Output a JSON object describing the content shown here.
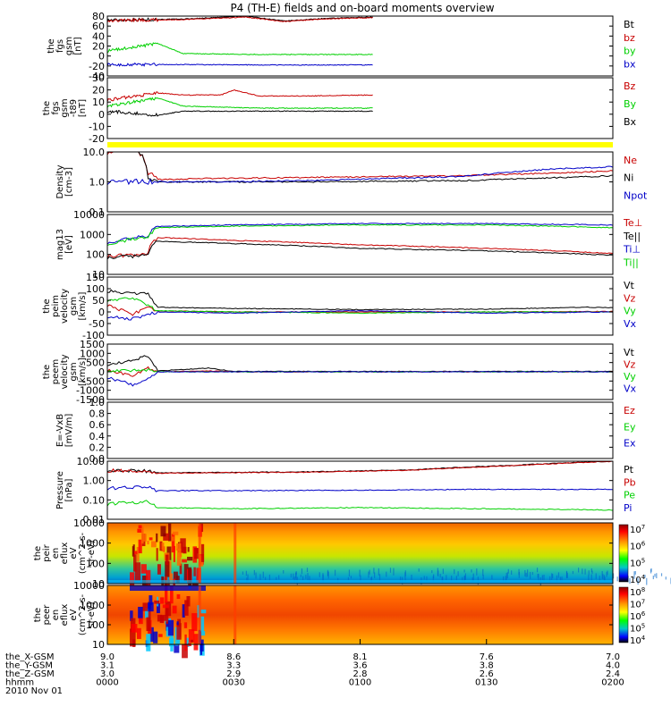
{
  "title": "P4 (TH-E) fields and on-board moments overview",
  "colors": {
    "black": "#000000",
    "red": "#c80000",
    "green": "#00d000",
    "blue": "#0000c8",
    "yellow": "#ffff00",
    "darkred": "#8b0000"
  },
  "time_axis": {
    "rows": [
      {
        "label": "the_X-GSM",
        "values": [
          "9.0",
          "8.6",
          "8.1",
          "7.6",
          "7.0"
        ]
      },
      {
        "label": "the_Y-GSM",
        "values": [
          "3.1",
          "3.3",
          "3.6",
          "3.8",
          "4.0"
        ]
      },
      {
        "label": "the_Z-GSM",
        "values": [
          "3.0",
          "2.9",
          "2.8",
          "2.6",
          "2.4"
        ]
      },
      {
        "label": "hhmm",
        "values": [
          "0000",
          "0030",
          "0100",
          "0130",
          "0200"
        ]
      }
    ],
    "date": "2010 Nov 01",
    "range": [
      "00:00",
      "02:00"
    ]
  },
  "chart_data": [
    {
      "type": "line",
      "ylabel": [
        "the",
        "fgs",
        "gsm",
        "[nT]"
      ],
      "ylim": [
        -40,
        80
      ],
      "yticks": [
        "80",
        "60",
        "40",
        "20",
        "0",
        "-20",
        "-40"
      ],
      "scale": "linear",
      "data_extent": [
        0,
        1.05
      ],
      "series": [
        {
          "name": "Bt",
          "color": "black",
          "x": [
            0,
            0.3,
            0.55,
            0.7,
            0.85,
            1.05
          ],
          "y": [
            72,
            74,
            80,
            70,
            75,
            78
          ]
        },
        {
          "name": "bz",
          "color": "red",
          "x": [
            0,
            0.3,
            0.55,
            0.7,
            0.85,
            1.05
          ],
          "y": [
            71,
            73,
            78,
            69,
            74,
            77
          ]
        },
        {
          "name": "by",
          "color": "green",
          "x": [
            0,
            0.2,
            0.3,
            0.6,
            1.05
          ],
          "y": [
            10,
            25,
            5,
            3,
            3
          ]
        },
        {
          "name": "bx",
          "color": "blue",
          "x": [
            0,
            0.3,
            0.6,
            1.05
          ],
          "y": [
            -17,
            -17,
            -18,
            -18
          ]
        }
      ]
    },
    {
      "type": "line",
      "ylabel": [
        "the",
        "fgs",
        "gsm",
        "-t89",
        "[nT]"
      ],
      "ylim": [
        -30,
        30
      ],
      "yticks": [
        "30",
        "20",
        "10",
        "0",
        "-10",
        "-20"
      ],
      "scale": "linear",
      "data_extent": [
        0,
        1.05
      ],
      "series": [
        {
          "name": "Bz",
          "color": "red",
          "x": [
            0,
            0.2,
            0.3,
            0.45,
            0.5,
            0.6,
            0.8,
            1.05
          ],
          "y": [
            8,
            15,
            13,
            13,
            18,
            12,
            12,
            13
          ]
        },
        {
          "name": "By",
          "color": "green",
          "x": [
            0,
            0.2,
            0.3,
            0.6,
            1.05
          ],
          "y": [
            2,
            10,
            2,
            0,
            0
          ]
        },
        {
          "name": "Bx",
          "color": "black",
          "x": [
            0,
            0.2,
            0.3,
            0.6,
            1.05
          ],
          "y": [
            -3,
            -7,
            -3,
            -3,
            -3
          ]
        }
      ]
    },
    {
      "type": "line",
      "ylabel": [
        "Density",
        "[cm-3]"
      ],
      "ylim": [
        0.1,
        10
      ],
      "yticks": [
        "10.0",
        "1.0",
        "0.1"
      ],
      "scale": "log",
      "data_extent": [
        0,
        2
      ],
      "series": [
        {
          "name": "Ne",
          "color": "red",
          "x": [
            0,
            0.1,
            0.16,
            0.2,
            0.4,
            0.8,
            1.4,
            1.8,
            2.0
          ],
          "y": [
            10,
            15,
            2,
            1.2,
            1.3,
            1.4,
            1.6,
            2.0,
            2.3
          ]
        },
        {
          "name": "Ni",
          "color": "black",
          "x": [
            0,
            0.1,
            0.16,
            0.2,
            0.4,
            0.8,
            1.4,
            1.8,
            2.0
          ],
          "y": [
            12,
            16,
            1.5,
            1.0,
            1.0,
            1.0,
            1.1,
            1.4,
            1.6
          ]
        },
        {
          "name": "Npot",
          "color": "blue",
          "x": [
            0,
            0.16,
            0.2,
            0.4,
            0.8,
            1.4,
            1.8,
            2.0
          ],
          "y": [
            1.0,
            1.0,
            1.0,
            1.0,
            1.1,
            1.5,
            2.8,
            3.2
          ]
        }
      ]
    },
    {
      "type": "line",
      "ylabel": [
        "mag13",
        "[eV]"
      ],
      "ylim": [
        10,
        10000
      ],
      "yticks": [
        "10000",
        "1000",
        "100",
        "10"
      ],
      "scale": "log",
      "data_extent": [
        0,
        2
      ],
      "series": [
        {
          "name": "Te⊥",
          "color": "red",
          "x": [
            0,
            0.16,
            0.2,
            0.5,
            1.0,
            1.5,
            2.0
          ],
          "y": [
            80,
            100,
            700,
            500,
            300,
            200,
            110
          ]
        },
        {
          "name": "Te||",
          "color": "black",
          "x": [
            0,
            0.16,
            0.2,
            0.5,
            1.0,
            1.5,
            2.0
          ],
          "y": [
            70,
            90,
            450,
            350,
            200,
            150,
            90
          ]
        },
        {
          "name": "Ti⊥",
          "color": "blue",
          "x": [
            0,
            0.16,
            0.2,
            0.5,
            1.0,
            1.5,
            2.0
          ],
          "y": [
            400,
            800,
            2500,
            3000,
            3500,
            3500,
            3000
          ]
        },
        {
          "name": "Ti||",
          "color": "green",
          "x": [
            0,
            0.16,
            0.2,
            0.5,
            1.0,
            1.5,
            2.0
          ],
          "y": [
            350,
            700,
            2200,
            2600,
            3000,
            3000,
            2200
          ]
        }
      ]
    },
    {
      "type": "line",
      "ylabel": [
        "the",
        "peim",
        "velocity",
        "gsm",
        "[km/s]"
      ],
      "ylim": [
        -100,
        150
      ],
      "yticks": [
        "150",
        "100",
        "50",
        "0",
        "-50",
        "-100"
      ],
      "scale": "linear",
      "data_extent": [
        0,
        2
      ],
      "series": [
        {
          "name": "Vt",
          "color": "black",
          "x": [
            0,
            0.1,
            0.16,
            0.2,
            0.5,
            1.0,
            1.5,
            1.9,
            2.0
          ],
          "y": [
            90,
            80,
            80,
            20,
            15,
            10,
            12,
            20,
            18
          ]
        },
        {
          "name": "Vz",
          "color": "red",
          "x": [
            0,
            0.1,
            0.16,
            0.2,
            0.5,
            1.0,
            1.5,
            2.0
          ],
          "y": [
            30,
            -10,
            20,
            5,
            0,
            0,
            0,
            2
          ]
        },
        {
          "name": "Vy",
          "color": "green",
          "x": [
            0,
            0.1,
            0.16,
            0.2,
            0.5,
            1.0,
            1.5,
            2.0
          ],
          "y": [
            50,
            60,
            30,
            5,
            0,
            -5,
            0,
            0
          ]
        },
        {
          "name": "Vx",
          "color": "blue",
          "x": [
            0,
            0.1,
            0.16,
            0.2,
            0.5,
            1.0,
            1.5,
            2.0
          ],
          "y": [
            -20,
            -30,
            -10,
            0,
            -5,
            5,
            -5,
            0
          ]
        }
      ]
    },
    {
      "type": "line",
      "ylabel": [
        "the",
        "peem",
        "velocity",
        "gsm",
        "[km/s]"
      ],
      "ylim": [
        -1500,
        1500
      ],
      "yticks": [
        "1500",
        "1000",
        "500",
        "0",
        "-500",
        "-1000",
        "-1500"
      ],
      "scale": "linear",
      "data_extent": [
        0,
        2
      ],
      "series": [
        {
          "name": "Vt",
          "color": "black",
          "x": [
            0,
            0.1,
            0.16,
            0.2,
            0.4,
            0.5,
            1.0,
            2.0
          ],
          "y": [
            400,
            600,
            900,
            50,
            200,
            20,
            20,
            20
          ]
        },
        {
          "name": "Vz",
          "color": "red",
          "x": [
            0,
            0.1,
            0.16,
            0.2,
            0.4,
            0.5,
            1.0,
            2.0
          ],
          "y": [
            100,
            -200,
            200,
            0,
            50,
            0,
            0,
            0
          ]
        },
        {
          "name": "Vy",
          "color": "green",
          "x": [
            0,
            0.16,
            0.2,
            1.0,
            2.0
          ],
          "y": [
            50,
            100,
            0,
            0,
            0
          ]
        },
        {
          "name": "Vx",
          "color": "blue",
          "x": [
            0,
            0.1,
            0.16,
            0.2,
            0.5,
            1.0,
            2.0
          ],
          "y": [
            -300,
            -700,
            -400,
            0,
            0,
            0,
            0
          ]
        }
      ]
    },
    {
      "type": "line",
      "ylabel": [
        "E=-VxB",
        "[mV/m]"
      ],
      "ylim": [
        0,
        1
      ],
      "yticks": [
        "1.0",
        "0.8",
        "0.6",
        "0.4",
        "0.2",
        "0.0"
      ],
      "scale": "linear",
      "data_extent": [
        0,
        2
      ],
      "series": [
        {
          "name": "Ez",
          "color": "red",
          "x": [],
          "y": []
        },
        {
          "name": "Ey",
          "color": "green",
          "x": [],
          "y": []
        },
        {
          "name": "Ex",
          "color": "blue",
          "x": [],
          "y": []
        }
      ]
    },
    {
      "type": "line",
      "ylabel": [
        "Pressure",
        "[nPa]"
      ],
      "ylim": [
        0.01,
        10
      ],
      "yticks": [
        "10.00",
        "1.00",
        "0.10",
        "0.01"
      ],
      "scale": "log",
      "data_extent": [
        0,
        2
      ],
      "series": [
        {
          "name": "Pt",
          "color": "black",
          "x": [
            0,
            0.16,
            0.2,
            0.8,
            1.2,
            1.6,
            2.0
          ],
          "y": [
            3.5,
            3.0,
            2.5,
            2.8,
            3.5,
            6.0,
            10.0
          ]
        },
        {
          "name": "Pb",
          "color": "red",
          "x": [
            0,
            0.16,
            0.2,
            0.8,
            1.2,
            1.6,
            2.0
          ],
          "y": [
            3.3,
            2.8,
            2.4,
            2.7,
            3.4,
            5.8,
            9.8
          ]
        },
        {
          "name": "Pe",
          "color": "green",
          "x": [
            0,
            0.16,
            0.2,
            0.5,
            1.0,
            1.5,
            2.0
          ],
          "y": [
            0.06,
            0.08,
            0.04,
            0.035,
            0.04,
            0.035,
            0.03
          ]
        },
        {
          "name": "Pi",
          "color": "blue",
          "x": [
            0,
            0.16,
            0.2,
            0.5,
            1.0,
            1.5,
            2.0
          ],
          "y": [
            0.4,
            0.45,
            0.3,
            0.3,
            0.32,
            0.35,
            0.35
          ]
        }
      ]
    },
    {
      "type": "heatmap",
      "ylabel": [
        "the",
        "peir",
        "en",
        "eflux",
        "eV",
        "(cm^2-s-",
        "sr-eV)"
      ],
      "ylim": [
        5,
        20000
      ],
      "yticks": [
        "10000",
        "1000",
        "100",
        "10"
      ],
      "scale": "log",
      "colorbar": [
        "10^7",
        "10^6",
        "10^5",
        "10^4"
      ]
    },
    {
      "type": "heatmap",
      "ylabel": [
        "the",
        "peer",
        "en",
        "eflux",
        "eV",
        "(cm^2-s-",
        "sr-eV)"
      ],
      "ylim": [
        8,
        15000
      ],
      "yticks": [
        "10000",
        "1000",
        "100",
        "10"
      ],
      "scale": "log",
      "colorbar": [
        "10^8",
        "10^7",
        "10^6",
        "10^5",
        "10^4"
      ]
    }
  ]
}
